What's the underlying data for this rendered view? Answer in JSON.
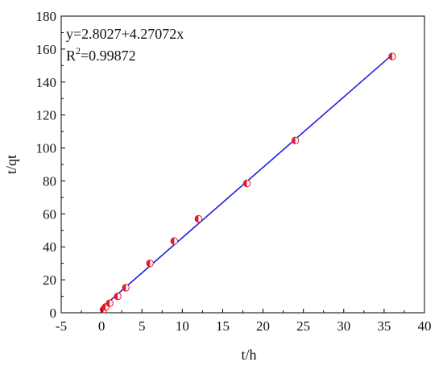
{
  "chart_data": {
    "type": "scatter",
    "xlabel": "t/h",
    "ylabel": "t/qt",
    "xlim": [
      -5,
      40
    ],
    "ylim": [
      0,
      180
    ],
    "xticks": [
      -5,
      0,
      5,
      10,
      15,
      20,
      25,
      30,
      35,
      40
    ],
    "yticks": [
      0,
      20,
      40,
      60,
      80,
      100,
      120,
      140,
      160,
      180
    ],
    "grid": false,
    "series": [
      {
        "points": [
          {
            "x": 0.25,
            "y": 2.0
          },
          {
            "x": 0.5,
            "y": 3.5
          },
          {
            "x": 1,
            "y": 5.8
          },
          {
            "x": 2,
            "y": 10.0
          },
          {
            "x": 3,
            "y": 15.2
          },
          {
            "x": 6,
            "y": 30.0
          },
          {
            "x": 9,
            "y": 43.5
          },
          {
            "x": 12,
            "y": 57.0
          },
          {
            "x": 18,
            "y": 78.5
          },
          {
            "x": 24,
            "y": 104.5
          },
          {
            "x": 36,
            "y": 155.5
          }
        ],
        "marker_color": "#e8192c"
      }
    ],
    "fit_line": {
      "intercept": 2.8027,
      "slope": 4.27072,
      "x_range": [
        0,
        36
      ],
      "color": "#1f1fe0"
    },
    "annotations": {
      "equation": "y=2.8027+4.27072x",
      "r2_prefix": "R",
      "r2_sup": "2",
      "r2_value": "=0.99872"
    }
  }
}
